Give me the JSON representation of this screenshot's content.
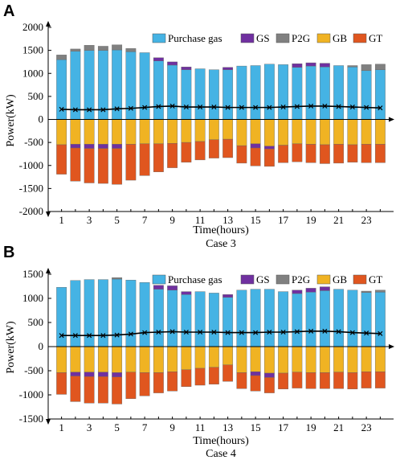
{
  "colors": {
    "purchase_gas": "#45b3e4",
    "gs": "#7030a0",
    "p2g": "#808080",
    "gb": "#f0b323",
    "gt": "#e0561f",
    "line": "#000000"
  },
  "legend": {
    "purchase_gas": "Purchase gas",
    "gs": "GS",
    "p2g": "P2G",
    "gb": "GB",
    "gt": "GT"
  },
  "chart_data": [
    {
      "type": "bar",
      "panel": "A",
      "caption": "Case 3",
      "xlabel": "Time(hours)",
      "ylabel": "Power(kW)",
      "ylim": [
        -2000,
        2000
      ],
      "yticks": [
        -2000,
        -1500,
        -1000,
        -500,
        0,
        500,
        1000,
        1500,
        2000
      ],
      "xticks": [
        1,
        3,
        5,
        7,
        9,
        11,
        13,
        15,
        17,
        19,
        21,
        23
      ],
      "categories": [
        1,
        2,
        3,
        4,
        5,
        6,
        7,
        8,
        9,
        10,
        11,
        12,
        13,
        14,
        15,
        16,
        17,
        18,
        19,
        20,
        21,
        22,
        23,
        24
      ],
      "series": [
        {
          "name": "Purchase gas",
          "key": "purchase_gas",
          "values": [
            1300,
            1480,
            1500,
            1500,
            1510,
            1470,
            1450,
            1270,
            1180,
            1080,
            1100,
            1080,
            1080,
            1160,
            1170,
            1200,
            1190,
            1130,
            1160,
            1140,
            1170,
            1140,
            1060,
            1080
          ]
        },
        {
          "name": "GS",
          "key": "gs",
          "values": [
            0,
            0,
            0,
            0,
            0,
            0,
            0,
            70,
            70,
            60,
            0,
            0,
            50,
            0,
            0,
            0,
            0,
            80,
            70,
            80,
            0,
            0,
            0,
            0
          ]
        },
        {
          "name": "P2G",
          "key": "p2g",
          "values": [
            100,
            50,
            110,
            90,
            110,
            70,
            0,
            0,
            0,
            0,
            0,
            0,
            0,
            0,
            0,
            0,
            0,
            0,
            0,
            0,
            0,
            30,
            130,
            120
          ]
        },
        {
          "name": "GB",
          "key": "gb",
          "values": [
            -550,
            -540,
            -540,
            -540,
            -540,
            -540,
            -530,
            -530,
            -520,
            -500,
            -480,
            -440,
            -430,
            -570,
            -530,
            -580,
            -560,
            -530,
            -540,
            -550,
            -540,
            -550,
            -540,
            -540
          ]
        },
        {
          "name": "GS",
          "key": "gs",
          "values": [
            0,
            -80,
            -90,
            -90,
            -90,
            0,
            0,
            0,
            0,
            0,
            0,
            0,
            0,
            0,
            -90,
            -60,
            0,
            0,
            0,
            0,
            0,
            0,
            0,
            0
          ]
        },
        {
          "name": "GT",
          "key": "gt",
          "values": [
            -640,
            -720,
            -750,
            -760,
            -780,
            -780,
            -690,
            -610,
            -530,
            -430,
            -400,
            -400,
            -400,
            -380,
            -390,
            -380,
            -380,
            -390,
            -400,
            -410,
            -410,
            -380,
            -400,
            -400
          ]
        }
      ],
      "line": [
        220,
        210,
        210,
        210,
        230,
        240,
        260,
        280,
        290,
        270,
        270,
        270,
        260,
        260,
        260,
        260,
        270,
        280,
        290,
        290,
        280,
        270,
        260,
        250
      ]
    },
    {
      "type": "bar",
      "panel": "B",
      "caption": "Case 4",
      "xlabel": "Time(hours)",
      "ylabel": "Power(kW)",
      "ylim": [
        -1500,
        1500
      ],
      "yticks": [
        -1500,
        -1000,
        -500,
        0,
        500,
        1000,
        1500
      ],
      "xticks": [
        1,
        3,
        5,
        7,
        9,
        11,
        13,
        15,
        17,
        19,
        21,
        23
      ],
      "categories": [
        1,
        2,
        3,
        4,
        5,
        6,
        7,
        8,
        9,
        10,
        11,
        12,
        13,
        14,
        15,
        16,
        17,
        18,
        19,
        20,
        21,
        22,
        23,
        24
      ],
      "series": [
        {
          "name": "Purchase gas",
          "key": "purchase_gas",
          "values": [
            1230,
            1370,
            1390,
            1390,
            1400,
            1380,
            1330,
            1190,
            1170,
            1080,
            1140,
            1110,
            1020,
            1170,
            1190,
            1190,
            1140,
            1100,
            1130,
            1160,
            1190,
            1170,
            1120,
            1130
          ]
        },
        {
          "name": "GS",
          "key": "gs",
          "values": [
            0,
            0,
            0,
            0,
            0,
            0,
            0,
            80,
            90,
            60,
            0,
            0,
            60,
            0,
            0,
            0,
            0,
            70,
            80,
            80,
            0,
            0,
            0,
            0
          ]
        },
        {
          "name": "P2G",
          "key": "p2g",
          "values": [
            0,
            0,
            0,
            0,
            30,
            0,
            0,
            0,
            0,
            0,
            0,
            0,
            0,
            0,
            0,
            0,
            0,
            0,
            0,
            0,
            0,
            0,
            30,
            40
          ]
        },
        {
          "name": "GB",
          "key": "gb",
          "values": [
            -540,
            -530,
            -530,
            -530,
            -540,
            -530,
            -540,
            -540,
            -520,
            -480,
            -450,
            -430,
            -380,
            -540,
            -520,
            -550,
            -550,
            -530,
            -540,
            -540,
            -530,
            -540,
            -520,
            -520
          ]
        },
        {
          "name": "GS",
          "key": "gs",
          "values": [
            0,
            -80,
            -90,
            -90,
            -90,
            0,
            0,
            0,
            0,
            0,
            0,
            0,
            0,
            0,
            -80,
            -90,
            0,
            0,
            0,
            0,
            0,
            0,
            0,
            0
          ]
        },
        {
          "name": "GT",
          "key": "gt",
          "values": [
            -450,
            -530,
            -550,
            -550,
            -560,
            -550,
            -480,
            -420,
            -400,
            -350,
            -350,
            -350,
            -340,
            -330,
            -320,
            -320,
            -330,
            -330,
            -330,
            -330,
            -340,
            -340,
            -340,
            -340
          ]
        }
      ],
      "line": [
        230,
        230,
        230,
        230,
        240,
        260,
        290,
        300,
        310,
        300,
        300,
        300,
        290,
        290,
        290,
        300,
        300,
        310,
        320,
        320,
        310,
        290,
        280,
        270
      ]
    }
  ]
}
